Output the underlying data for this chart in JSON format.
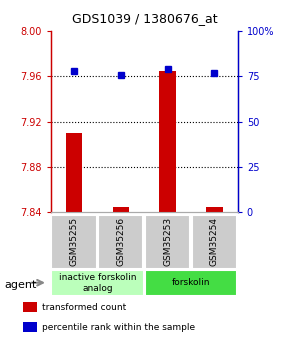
{
  "title": "GDS1039 / 1380676_at",
  "samples": [
    "GSM35255",
    "GSM35256",
    "GSM35253",
    "GSM35254"
  ],
  "bar_values": [
    7.91,
    7.845,
    7.965,
    7.845
  ],
  "percentile_values": [
    78,
    76,
    79,
    77
  ],
  "ylim_left": [
    7.84,
    8.0
  ],
  "ylim_right": [
    0,
    100
  ],
  "yticks_left": [
    7.84,
    7.88,
    7.92,
    7.96,
    8.0
  ],
  "yticks_right": [
    0,
    25,
    50,
    75,
    100
  ],
  "ytick_labels_right": [
    "0",
    "25",
    "50",
    "75",
    "100%"
  ],
  "bar_color": "#cc0000",
  "dot_color": "#0000cc",
  "groups": [
    {
      "label": "inactive forskolin\nanalog",
      "samples": [
        0,
        1
      ],
      "color": "#bbffbb"
    },
    {
      "label": "forskolin",
      "samples": [
        2,
        3
      ],
      "color": "#44dd44"
    }
  ],
  "agent_label": "agent",
  "legend_items": [
    {
      "color": "#cc0000",
      "label": "transformed count"
    },
    {
      "color": "#0000cc",
      "label": "percentile rank within the sample"
    }
  ],
  "left_axis_color": "#cc0000",
  "right_axis_color": "#0000cc",
  "grid_yticks": [
    7.88,
    7.92,
    7.96
  ],
  "bar_width": 0.35,
  "dot_markersize": 4
}
